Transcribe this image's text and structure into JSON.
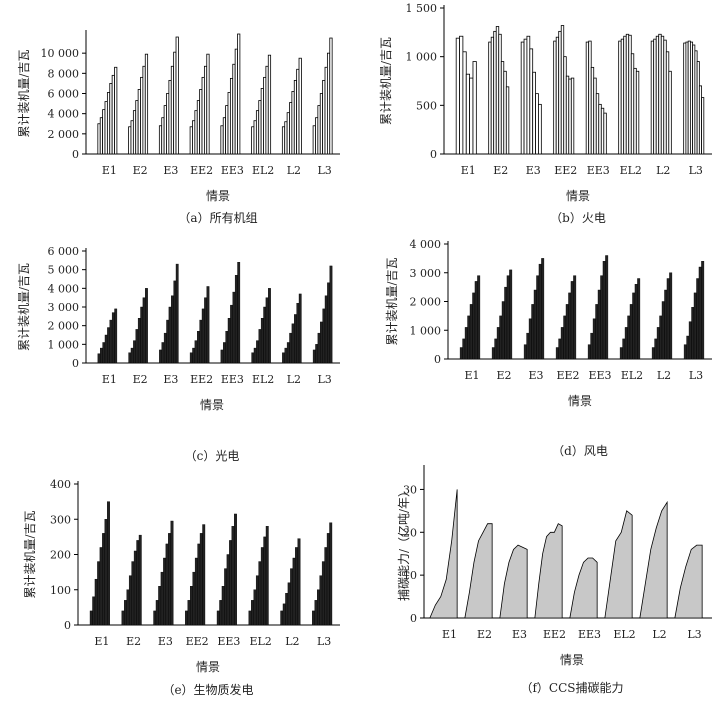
{
  "figure": {
    "colors": {
      "white_bar": "#ffffff",
      "dark_bar": "#222222",
      "area_fill": "#c8c8c8",
      "axis": "#000000"
    }
  },
  "chart_data": [
    {
      "id": "a",
      "type": "bar",
      "style": "white",
      "caption": "（a）所有机组",
      "xlabel": "情景",
      "ylabel": "累计装机量/吉瓦",
      "ylim": [
        0,
        12000
      ],
      "yticks": [
        0,
        2000,
        4000,
        6000,
        8000,
        10000
      ],
      "ytick_labels": [
        "0",
        "2 000",
        "4 000",
        "6 000",
        "8 000",
        "10 000"
      ],
      "categories": [
        "E1",
        "E2",
        "E3",
        "EE2",
        "EE3",
        "EL2",
        "L2",
        "L3"
      ],
      "series": [
        [
          3000,
          3600,
          4400,
          5200,
          6100,
          7000,
          7800,
          8600
        ],
        [
          2700,
          3300,
          4300,
          5300,
          6400,
          7600,
          8700,
          9900
        ],
        [
          2800,
          3600,
          4800,
          6000,
          7300,
          8700,
          10100,
          11600
        ],
        [
          2700,
          3300,
          4300,
          5300,
          6400,
          7600,
          8700,
          9900
        ],
        [
          2800,
          3600,
          4800,
          6100,
          7500,
          8900,
          10400,
          11900
        ],
        [
          2700,
          3300,
          4300,
          5300,
          6500,
          7600,
          8700,
          9800
        ],
        [
          2700,
          3200,
          4100,
          5100,
          6200,
          7300,
          8400,
          9500
        ],
        [
          2800,
          3600,
          4800,
          6000,
          7300,
          8600,
          10000,
          11500
        ]
      ]
    },
    {
      "id": "b",
      "type": "bar",
      "style": "white",
      "caption": "（b）火电",
      "xlabel": "情景",
      "ylabel": "累计装机量/吉瓦",
      "ylim": [
        0,
        1500
      ],
      "yticks": [
        0,
        500,
        1000,
        1500
      ],
      "ytick_labels": [
        "0",
        "500",
        "1 000",
        "1 500"
      ],
      "categories": [
        "E1",
        "E2",
        "E3",
        "EE2",
        "EE3",
        "EL2",
        "L2",
        "L3"
      ],
      "series": [
        [
          1190,
          1210,
          1050,
          820,
          780,
          950
        ],
        [
          1150,
          1200,
          1260,
          1310,
          1230,
          950,
          850,
          690
        ],
        [
          1150,
          1180,
          1210,
          1080,
          840,
          620,
          510
        ],
        [
          1160,
          1200,
          1260,
          1320,
          1000,
          800,
          770,
          780
        ],
        [
          1150,
          1160,
          890,
          780,
          620,
          510,
          470,
          420
        ],
        [
          1160,
          1180,
          1210,
          1230,
          1220,
          1030,
          880,
          850
        ],
        [
          1160,
          1180,
          1210,
          1230,
          1210,
          1170,
          1050,
          850
        ],
        [
          1140,
          1150,
          1160,
          1150,
          1120,
          1060,
          950,
          700,
          580
        ]
      ]
    },
    {
      "id": "c",
      "type": "bar",
      "style": "dark",
      "caption": "（c）光电",
      "xlabel": "情景",
      "ylabel": "累计装机量/吉瓦",
      "ylim": [
        0,
        6000
      ],
      "yticks": [
        0,
        1000,
        2000,
        3000,
        4000,
        5000,
        6000
      ],
      "ytick_labels": [
        "0",
        "1 000",
        "2 000",
        "3 000",
        "4 000",
        "5 000",
        "6 000"
      ],
      "categories": [
        "E1",
        "E2",
        "E3",
        "EE2",
        "EE3",
        "EL2",
        "L2",
        "L3"
      ],
      "series": [
        [
          500,
          800,
          1100,
          1500,
          1900,
          2300,
          2700,
          2900
        ],
        [
          550,
          800,
          1200,
          1800,
          2400,
          3000,
          3500,
          4000
        ],
        [
          700,
          1100,
          1600,
          2300,
          3000,
          3600,
          4400,
          5300
        ],
        [
          550,
          800,
          1200,
          1700,
          2300,
          2900,
          3500,
          4100
        ],
        [
          700,
          1100,
          1700,
          2400,
          3100,
          3800,
          4700,
          5400
        ],
        [
          550,
          800,
          1200,
          1800,
          2400,
          3000,
          3500,
          4000
        ],
        [
          550,
          800,
          1100,
          1600,
          2100,
          2600,
          3200,
          3700
        ],
        [
          700,
          1000,
          1600,
          2200,
          2900,
          3600,
          4300,
          5200
        ]
      ]
    },
    {
      "id": "d",
      "type": "bar",
      "style": "dark",
      "caption": "（d）风电",
      "xlabel": "情景",
      "ylabel": "累计装机量/吉瓦",
      "ylim": [
        0,
        4000
      ],
      "yticks": [
        0,
        1000,
        2000,
        3000,
        4000
      ],
      "ytick_labels": [
        "0",
        "1 000",
        "2 000",
        "3 000",
        "4 000"
      ],
      "categories": [
        "E1",
        "E2",
        "E3",
        "EE2",
        "EE3",
        "EL2",
        "L2",
        "L3"
      ],
      "series": [
        [
          400,
          700,
          1100,
          1500,
          1900,
          2300,
          2700,
          2900
        ],
        [
          400,
          700,
          1100,
          1500,
          2000,
          2500,
          2900,
          3100
        ],
        [
          500,
          900,
          1400,
          1900,
          2400,
          2900,
          3300,
          3500
        ],
        [
          400,
          700,
          1100,
          1500,
          1900,
          2300,
          2700,
          2900
        ],
        [
          500,
          900,
          1400,
          1900,
          2400,
          2900,
          3400,
          3600
        ],
        [
          400,
          700,
          1100,
          1500,
          1900,
          2300,
          2600,
          2800
        ],
        [
          400,
          700,
          1100,
          1500,
          2000,
          2400,
          2800,
          3000
        ],
        [
          500,
          800,
          1300,
          1800,
          2300,
          2800,
          3200,
          3400
        ]
      ]
    },
    {
      "id": "e",
      "type": "bar",
      "style": "dark",
      "caption": "（e）生物质发电",
      "xlabel": "情景",
      "ylabel": "累计装机量/吉瓦",
      "ylim": [
        0,
        400
      ],
      "yticks": [
        0,
        100,
        200,
        300,
        400
      ],
      "ytick_labels": [
        "0",
        "100",
        "200",
        "300",
        "400"
      ],
      "categories": [
        "E1",
        "E2",
        "E3",
        "EE2",
        "EE3",
        "EL2",
        "L2",
        "L3"
      ],
      "series": [
        [
          40,
          80,
          130,
          180,
          220,
          260,
          300,
          350
        ],
        [
          40,
          70,
          100,
          140,
          180,
          210,
          240,
          255
        ],
        [
          40,
          70,
          110,
          150,
          190,
          230,
          260,
          295
        ],
        [
          40,
          70,
          110,
          150,
          190,
          230,
          260,
          285
        ],
        [
          40,
          70,
          110,
          160,
          200,
          240,
          280,
          315
        ],
        [
          40,
          70,
          100,
          140,
          180,
          220,
          250,
          280
        ],
        [
          40,
          60,
          90,
          120,
          160,
          190,
          220,
          245
        ],
        [
          40,
          70,
          100,
          140,
          180,
          220,
          260,
          290
        ]
      ]
    },
    {
      "id": "f",
      "type": "area",
      "caption": "（f）CCS捕碳能力",
      "xlabel": "情景",
      "ylabel": "捕碳能力/（亿吨/年）",
      "ylim": [
        0,
        35
      ],
      "yticks": [
        0,
        10,
        20,
        30
      ],
      "ytick_labels": [
        "0",
        "10",
        "20",
        "30"
      ],
      "categories": [
        "E1",
        "E2",
        "E3",
        "EE2",
        "EE3",
        "EL2",
        "L2",
        "L3"
      ],
      "series": [
        [
          0,
          3,
          5,
          9,
          18,
          30
        ],
        [
          0,
          6,
          13,
          18,
          20,
          22,
          22
        ],
        [
          0,
          8,
          13,
          16,
          17,
          16.5,
          16
        ],
        [
          0,
          8,
          15,
          19,
          20,
          20,
          22,
          21.5
        ],
        [
          0,
          6,
          10,
          13,
          14,
          14,
          13
        ],
        [
          0,
          9,
          18,
          20,
          25,
          24
        ],
        [
          0,
          8,
          16,
          21,
          25,
          27
        ],
        [
          0,
          7,
          12,
          16,
          17,
          17
        ]
      ]
    }
  ]
}
